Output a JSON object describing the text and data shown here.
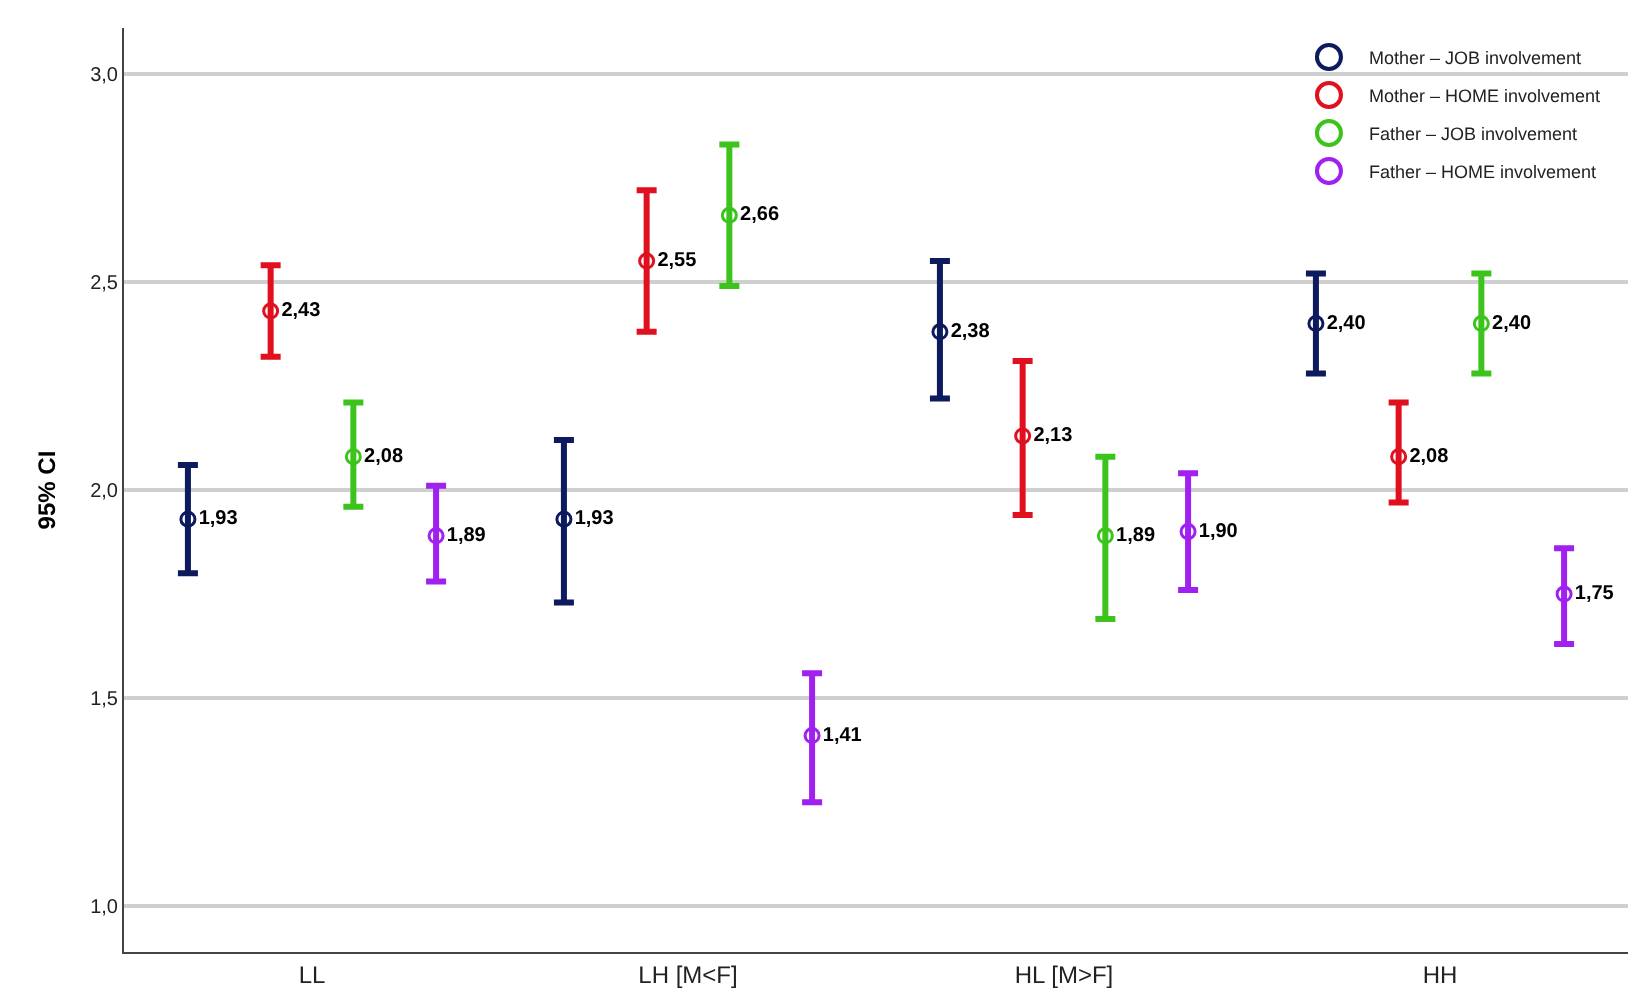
{
  "chart_data": {
    "type": "scatter",
    "ylabel": "95% CI",
    "categories": [
      "LL",
      "LH [M<F]",
      "HL [M>F]",
      "HH"
    ],
    "series": [
      {
        "name": "Mother – JOB involvement",
        "color": "#0d1a5e",
        "values": [
          1.93,
          1.93,
          2.38,
          2.4
        ],
        "errors": [
          [
            1.8,
            2.06
          ],
          [
            1.73,
            2.12
          ],
          [
            2.22,
            2.55
          ],
          [
            2.28,
            2.52
          ]
        ],
        "value_labels": [
          "1,93",
          "1,93",
          "2,38",
          "2,40"
        ]
      },
      {
        "name": "Mother – HOME involvement",
        "color": "#e0101e",
        "values": [
          2.43,
          2.55,
          2.13,
          2.08
        ],
        "errors": [
          [
            2.32,
            2.54
          ],
          [
            2.38,
            2.72
          ],
          [
            1.94,
            2.31
          ],
          [
            1.97,
            2.21
          ]
        ],
        "value_labels": [
          "2,43",
          "2,55",
          "2,13",
          "2,08"
        ]
      },
      {
        "name": "Father – JOB involvement",
        "color": "#3cc41c",
        "values": [
          2.08,
          2.66,
          1.89,
          2.4
        ],
        "errors": [
          [
            1.96,
            2.21
          ],
          [
            2.49,
            2.83
          ],
          [
            1.69,
            2.08
          ],
          [
            2.28,
            2.52
          ]
        ],
        "value_labels": [
          "2,08",
          "2,66",
          "1,89",
          "2,40"
        ]
      },
      {
        "name": "Father – HOME involvement",
        "color": "#a020f0",
        "values": [
          1.89,
          1.41,
          1.9,
          1.75
        ],
        "errors": [
          [
            1.78,
            2.01
          ],
          [
            1.25,
            1.56
          ],
          [
            1.76,
            2.04
          ],
          [
            1.63,
            1.86
          ]
        ],
        "value_labels": [
          "1,89",
          "1,41",
          "1,90",
          "1,75"
        ]
      }
    ],
    "ylim": [
      0.89,
      3.11
    ],
    "yticks": [
      {
        "value": 1,
        "label": "1,0"
      },
      {
        "value": 1.5,
        "label": "1,5"
      },
      {
        "value": 2,
        "label": "2,0"
      },
      {
        "value": 2.5,
        "label": "2,5"
      },
      {
        "value": 3,
        "label": "3,0"
      }
    ],
    "grid": "y",
    "legend": "top right",
    "marker": "circle"
  }
}
